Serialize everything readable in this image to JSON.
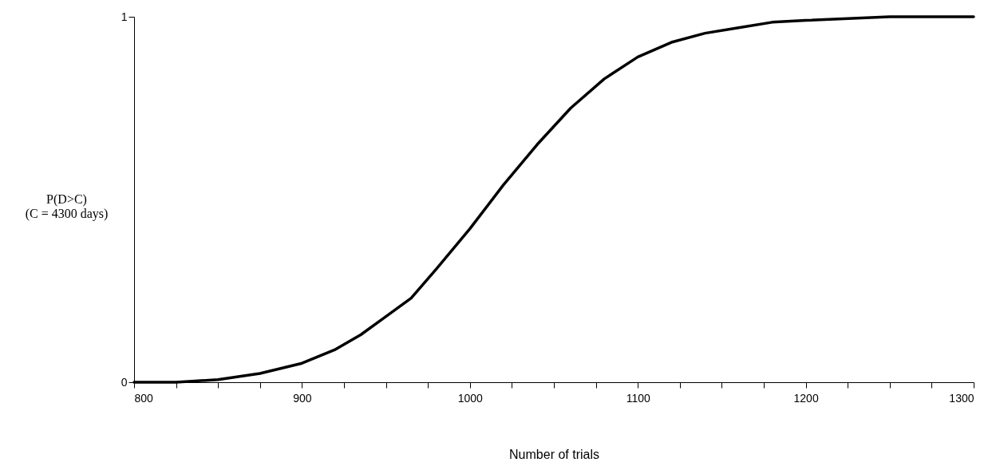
{
  "chart_data": {
    "type": "line",
    "xlabel": "Number of trials",
    "ylabel": "P(D>C)\n(C = 4300 days)",
    "x": [
      800,
      825,
      850,
      875,
      900,
      920,
      935,
      950,
      965,
      980,
      1000,
      1020,
      1040,
      1060,
      1080,
      1100,
      1120,
      1140,
      1160,
      1180,
      1200,
      1250,
      1300
    ],
    "series": [
      {
        "color": "#000000",
        "values": [
          0,
          0,
          0.007,
          0.024,
          0.052,
          0.09,
          0.13,
          0.18,
          0.23,
          0.31,
          0.42,
          0.54,
          0.65,
          0.75,
          0.83,
          0.89,
          0.93,
          0.955,
          0.97,
          0.985,
          0.99,
          1,
          1
        ]
      }
    ],
    "xlim": [
      800,
      1300
    ],
    "xticks": [
      800,
      {
        "value": 825,
        "label": null
      },
      {
        "value": 850,
        "label": null
      },
      {
        "value": 875,
        "label": null
      },
      900,
      {
        "value": 925,
        "label": null
      },
      {
        "value": 950,
        "label": null
      },
      {
        "value": 975,
        "label": null
      },
      1000,
      {
        "value": 1025,
        "label": null
      },
      {
        "value": 1050,
        "label": null
      },
      {
        "value": 1075,
        "label": null
      },
      1100,
      {
        "value": 1125,
        "label": null
      },
      {
        "value": 1150,
        "label": null
      },
      {
        "value": 1175,
        "label": null
      },
      1200,
      {
        "value": 1225,
        "label": null
      },
      {
        "value": 1250,
        "label": null
      },
      {
        "value": 1275,
        "label": null
      },
      1300
    ],
    "ylim": [
      0,
      1
    ],
    "yticks": [
      0,
      1
    ]
  }
}
